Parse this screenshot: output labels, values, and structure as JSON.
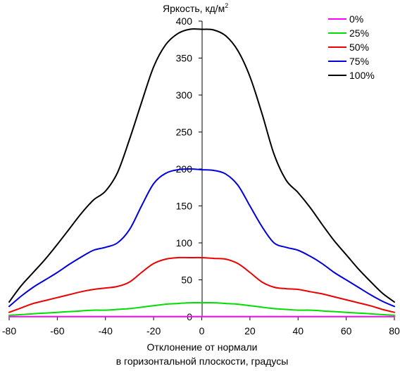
{
  "chart_data": {
    "type": "line",
    "title": "Яркость, кд/м",
    "title_superscript": "2",
    "xlabel_line1": "Отклонение от нормали",
    "xlabel_line2": "в горизонтальной плоскости, градусы",
    "xlim": [
      -80,
      80
    ],
    "ylim": [
      0,
      400
    ],
    "xticks": [
      "-80",
      "-60",
      "-40",
      "-20",
      "0",
      "20",
      "40",
      "60",
      "80"
    ],
    "yticks": [
      "0",
      "50",
      "100",
      "150",
      "200",
      "250",
      "300",
      "350",
      "400"
    ],
    "grid": false,
    "legend_position": "top-right",
    "x": [
      -80,
      -75,
      -70,
      -65,
      -60,
      -55,
      -50,
      -45,
      -40,
      -35,
      -30,
      -25,
      -20,
      -15,
      -10,
      -5,
      0,
      5,
      10,
      15,
      20,
      25,
      30,
      35,
      40,
      45,
      50,
      55,
      60,
      65,
      70,
      75,
      80
    ],
    "series": [
      {
        "name": "0%",
        "color": "#ff00ff",
        "values": [
          0.3,
          0.3,
          0.3,
          0.3,
          0.3,
          0.3,
          0.3,
          0.3,
          0.3,
          0.3,
          0.3,
          0.3,
          0.3,
          0.3,
          0.3,
          0.3,
          0.3,
          0.3,
          0.3,
          0.3,
          0.3,
          0.3,
          0.3,
          0.3,
          0.3,
          0.3,
          0.3,
          0.3,
          0.3,
          0.3,
          0.3,
          0.3,
          0.3
        ]
      },
      {
        "name": "25%",
        "color": "#00dd00",
        "values": [
          2,
          3,
          4,
          5,
          6,
          7,
          8,
          9,
          9,
          10,
          11,
          13,
          15,
          17,
          18,
          19,
          19,
          19,
          18,
          17,
          15,
          13,
          11,
          10,
          9,
          9,
          8,
          7,
          6,
          5,
          4,
          3,
          2
        ]
      },
      {
        "name": "50%",
        "color": "#ee0000",
        "values": [
          6,
          12,
          18,
          22,
          26,
          30,
          34,
          37,
          39,
          41,
          47,
          60,
          72,
          78,
          80,
          80,
          80,
          79,
          78,
          72,
          60,
          47,
          40,
          38,
          37,
          34,
          31,
          27,
          23,
          19,
          15,
          10,
          6
        ]
      },
      {
        "name": "75%",
        "color": "#0000dd",
        "values": [
          14,
          28,
          40,
          50,
          60,
          71,
          81,
          90,
          94,
          100,
          118,
          150,
          180,
          194,
          199,
          200,
          199,
          198,
          193,
          178,
          150,
          122,
          100,
          94,
          90,
          82,
          72,
          60,
          50,
          40,
          30,
          21,
          14
        ]
      },
      {
        "name": "100%",
        "color": "#000000",
        "values": [
          20,
          42,
          60,
          78,
          98,
          119,
          140,
          158,
          170,
          195,
          240,
          290,
          338,
          368,
          383,
          389,
          389,
          388,
          380,
          360,
          325,
          275,
          220,
          185,
          168,
          148,
          125,
          103,
          84,
          65,
          48,
          32,
          20
        ]
      }
    ]
  }
}
